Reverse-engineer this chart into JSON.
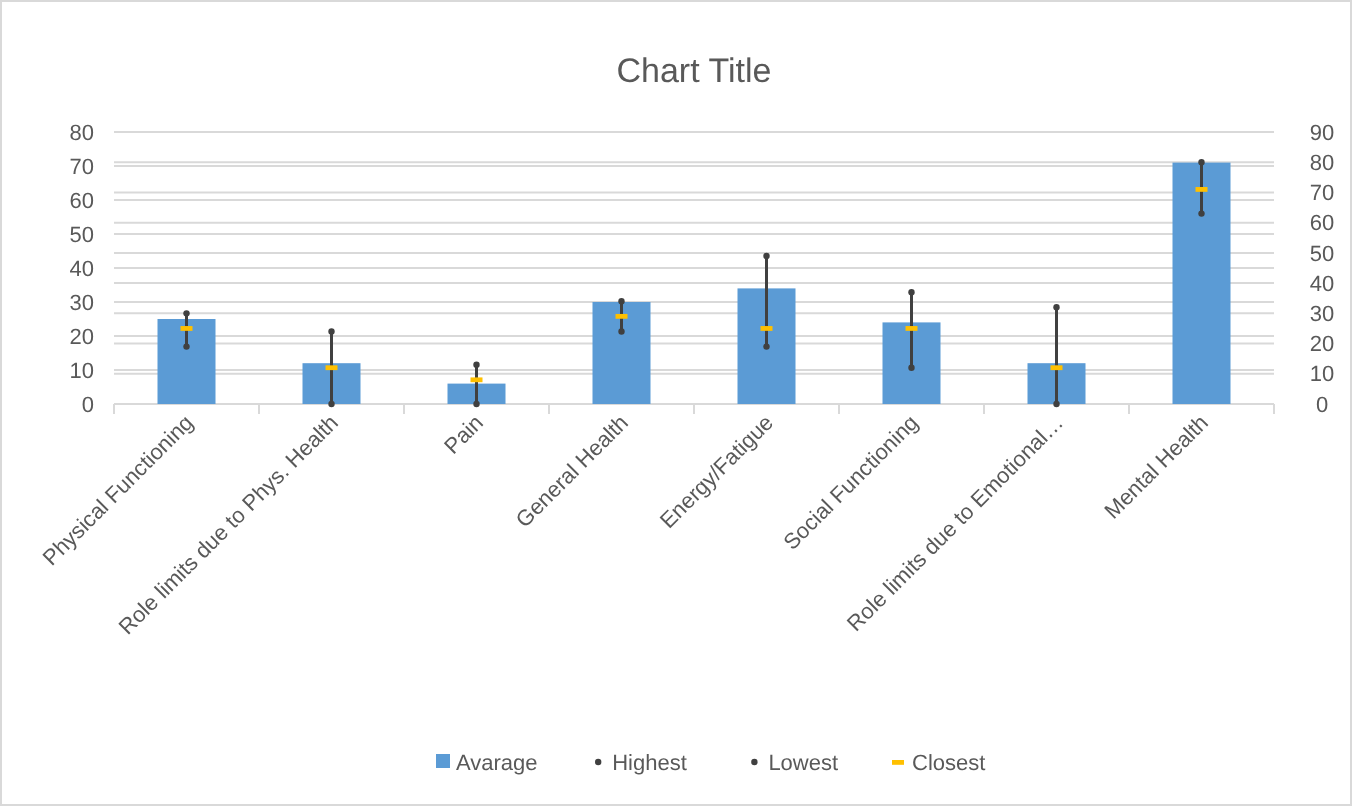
{
  "chart_data": {
    "type": "bar",
    "title": "Chart Title",
    "categories": [
      "Physical Functioning",
      "Role limits due to Phys. Health",
      "Pain",
      "General Health",
      "Energy/Fatigue",
      "Social Functioning",
      "Role limits due to Emotional…",
      "Mental Health"
    ],
    "series": [
      {
        "name": "Avarage",
        "color": "#5b9bd5",
        "values": [
          25,
          12,
          6,
          30,
          34,
          24,
          12,
          71
        ]
      },
      {
        "name": "Highest",
        "type": "scatter",
        "axis": "y2",
        "color": "#404040",
        "marker": "circle",
        "values": [
          30,
          24,
          13,
          34,
          49,
          37,
          32,
          80
        ]
      },
      {
        "name": "Lowest",
        "type": "scatter",
        "axis": "y2",
        "color": "#404040",
        "marker": "circle",
        "values": [
          19,
          0,
          0,
          24,
          19,
          12,
          0,
          63
        ]
      },
      {
        "name": "Closest",
        "type": "scatter",
        "axis": "y2",
        "color": "#ffc000",
        "marker": "square",
        "values": [
          25,
          12,
          8,
          29,
          25,
          25,
          12,
          71
        ]
      }
    ],
    "ylim": [
      0,
      80
    ],
    "yticks": [
      0,
      10,
      20,
      30,
      40,
      50,
      60,
      70,
      80
    ],
    "y2lim": [
      0,
      90
    ],
    "y2ticks": [
      0,
      10,
      20,
      30,
      40,
      50,
      60,
      70,
      80,
      90
    ],
    "grid": true,
    "legend": "bottom"
  }
}
